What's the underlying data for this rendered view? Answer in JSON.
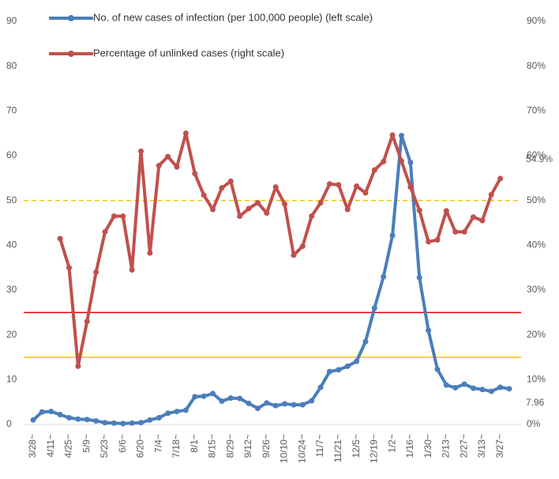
{
  "chart_data": {
    "type": "line",
    "categories": [
      "3/28~",
      null,
      "4/11~",
      null,
      "4/25~",
      null,
      "5/9~",
      null,
      "5/23~",
      null,
      "6/6~",
      null,
      "6/20~",
      null,
      "7/4~",
      null,
      "7/18~",
      null,
      "8/1~",
      null,
      "8/15~",
      null,
      "8/29~",
      null,
      "9/12~",
      null,
      "9/26~",
      null,
      "10/10~",
      null,
      "10/24~",
      null,
      "11/7~",
      null,
      "11/21~",
      null,
      "12/5~",
      null,
      "12/19~",
      null,
      "1/2~",
      null,
      "1/16~",
      null,
      "1/30~",
      null,
      "2/13~",
      null,
      "2/27~",
      null,
      "3/13~",
      null,
      "3/27~",
      null
    ],
    "series": [
      {
        "name": "No. of new cases of infection (per 100,000 people) (left scale)",
        "color": "#4a7ebb",
        "axis": "y",
        "values": [
          1.0,
          2.8,
          2.9,
          2.2,
          1.5,
          1.2,
          1.1,
          0.8,
          0.4,
          0.3,
          0.2,
          0.3,
          0.4,
          1.0,
          1.5,
          2.5,
          2.9,
          3.2,
          6.2,
          6.3,
          6.9,
          5.2,
          5.9,
          5.8,
          4.7,
          3.6,
          4.8,
          4.2,
          4.6,
          4.4,
          4.4,
          5.3,
          8.3,
          11.8,
          12.2,
          13.0,
          14.1,
          18.5,
          26.0,
          33.0,
          42.2,
          64.5,
          58.5,
          32.8,
          21.0,
          12.3,
          8.8,
          8.2,
          9.0,
          8.1,
          7.8,
          7.4,
          8.3,
          7.96
        ],
        "value_labels": [
          null,
          null,
          null,
          null,
          null,
          null,
          null,
          null,
          null,
          null,
          null,
          null,
          null,
          null,
          null,
          null,
          null,
          null,
          null,
          null,
          null,
          null,
          null,
          null,
          null,
          null,
          null,
          null,
          null,
          null,
          null,
          null,
          null,
          null,
          null,
          null,
          null,
          null,
          null,
          null,
          null,
          null,
          null,
          null,
          null,
          null,
          null,
          null,
          null,
          null,
          null,
          null,
          null,
          "7.96"
        ]
      },
      {
        "name": "Percentage of unlinked cases (right scale)",
        "color": "#c0504d",
        "axis": "y2",
        "values": [
          null,
          null,
          null,
          41.5,
          35.0,
          13.0,
          23.0,
          34.0,
          43.0,
          46.5,
          46.5,
          34.5,
          61.0,
          38.3,
          57.8,
          59.8,
          57.5,
          65.0,
          56.0,
          51.2,
          48.0,
          52.8,
          54.3,
          46.5,
          48.2,
          49.5,
          47.2,
          53.0,
          49.2,
          37.8,
          39.8,
          46.5,
          49.5,
          53.7,
          53.5,
          48.0,
          53.2,
          51.7,
          56.8,
          58.7,
          64.6,
          58.8,
          53.0,
          47.8,
          40.8,
          41.2,
          47.7,
          43.0,
          43.0,
          46.3,
          45.5,
          51.3,
          54.9,
          null
        ],
        "value_labels": [
          null,
          null,
          null,
          null,
          null,
          null,
          null,
          null,
          null,
          null,
          null,
          null,
          null,
          null,
          null,
          null,
          null,
          null,
          null,
          null,
          null,
          null,
          null,
          null,
          null,
          null,
          null,
          null,
          null,
          null,
          null,
          null,
          null,
          null,
          null,
          null,
          null,
          null,
          null,
          null,
          null,
          null,
          null,
          null,
          null,
          null,
          null,
          null,
          null,
          null,
          null,
          null,
          "54.9%",
          null
        ]
      }
    ],
    "ylim": [
      0,
      90
    ],
    "yticks": [
      0,
      10,
      20,
      30,
      40,
      50,
      60,
      70,
      80,
      90
    ],
    "y2lim": [
      0,
      90
    ],
    "y2ticks": [
      {
        "value": 0,
        "label": "0%"
      },
      {
        "value": 10,
        "label": "10%"
      },
      {
        "value": 20,
        "label": "20%"
      },
      {
        "value": 30,
        "label": "30%"
      },
      {
        "value": 40,
        "label": "40%"
      },
      {
        "value": 50,
        "label": "50%"
      },
      {
        "value": 60,
        "label": "60%"
      },
      {
        "value": 70,
        "label": "70%"
      },
      {
        "value": 80,
        "label": "80%"
      },
      {
        "value": 90,
        "label": "90%"
      }
    ],
    "reference_lines": [
      {
        "value": 50,
        "axis": "y2",
        "color": "#f5c400",
        "style": "dashed"
      },
      {
        "value": 25,
        "axis": "y",
        "color": "#e00000",
        "style": "solid"
      },
      {
        "value": 15,
        "axis": "y",
        "color": "#f5c400",
        "style": "solid"
      }
    ],
    "grid": false,
    "legend": "top-left"
  }
}
